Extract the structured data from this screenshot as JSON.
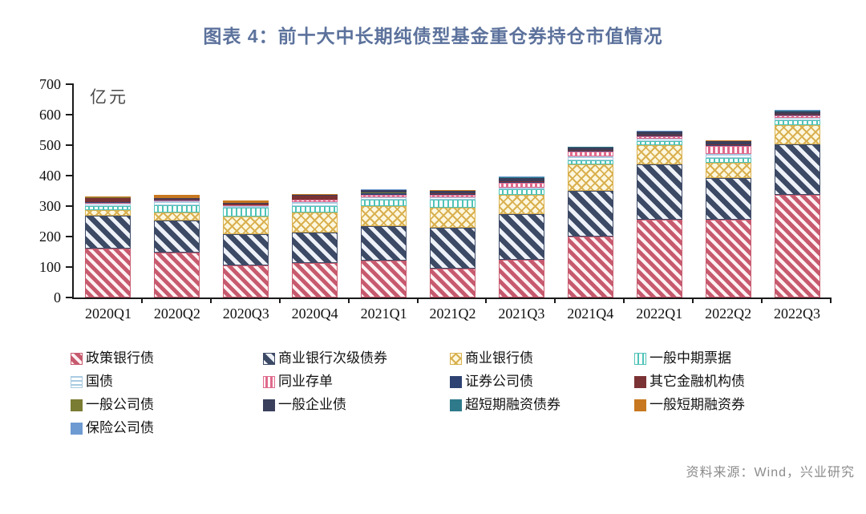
{
  "title": "图表 4：前十大中长期纯债型基金重仓券持仓市值情况",
  "source": "资料来源：Wind，兴业研究",
  "colors": {
    "title": "#5c729c",
    "source": "#8c8c8c",
    "axis": "#1a1a1a"
  },
  "chart_data": {
    "type": "bar",
    "stacked": true,
    "title": "图表 4：前十大中长期纯债型基金重仓券持仓市值情况",
    "xlabel": "",
    "ylabel": "亿元",
    "ylim": [
      0,
      700
    ],
    "yticks": [
      0,
      100,
      200,
      300,
      400,
      500,
      600,
      700
    ],
    "grid": false,
    "legend_position": "bottom",
    "categories": [
      "2020Q1",
      "2020Q2",
      "2020Q3",
      "2020Q4",
      "2021Q1",
      "2021Q2",
      "2021Q3",
      "2021Q4",
      "2022Q1",
      "2022Q2",
      "2022Q3"
    ],
    "series": [
      {
        "name": "政策银行债",
        "pattern": "diag-pink",
        "color": "#c75a6e",
        "values": [
          160,
          147,
          105,
          113,
          122,
          95,
          125,
          200,
          255,
          255,
          338
        ]
      },
      {
        "name": "商业银行次级债券",
        "pattern": "diag-navy",
        "color": "#3d4a66",
        "values": [
          108,
          106,
          104,
          100,
          113,
          135,
          150,
          149,
          182,
          136,
          165
        ]
      },
      {
        "name": "商业银行债",
        "pattern": "cross-yellow",
        "color": "#d9b04f",
        "values": [
          19,
          26,
          56,
          66,
          65,
          65,
          62,
          88,
          62,
          52,
          62
        ]
      },
      {
        "name": "一般中期票据",
        "pattern": "vlines-teal",
        "color": "#4fc3b8",
        "values": [
          13,
          25,
          30,
          20,
          22,
          25,
          18,
          13,
          15,
          15,
          18
        ]
      },
      {
        "name": "国债",
        "pattern": "hlines-lightblue",
        "color": "#a9cbe2",
        "values": [
          8,
          12,
          5,
          15,
          8,
          10,
          6,
          12,
          7,
          12,
          6
        ]
      },
      {
        "name": "同业存单",
        "pattern": "vlines-pink",
        "color": "#e06a8c",
        "values": [
          2,
          2,
          2,
          6,
          8,
          6,
          15,
          16,
          8,
          28,
          8
        ]
      },
      {
        "name": "证券公司债",
        "pattern": "solid",
        "color": "#2e4372",
        "values": [
          2,
          2,
          2,
          2,
          3,
          3,
          4,
          4,
          3,
          3,
          4
        ]
      },
      {
        "name": "其它金融机构债",
        "pattern": "solid",
        "color": "#7b3234",
        "values": [
          15,
          3,
          3,
          12,
          2,
          2,
          2,
          2,
          2,
          2,
          2
        ]
      },
      {
        "name": "一般公司债",
        "pattern": "solid",
        "color": "#7a7c33",
        "values": [
          1,
          1,
          1,
          1,
          1,
          1,
          1,
          1,
          1,
          1,
          1
        ]
      },
      {
        "name": "一般企业债",
        "pattern": "solid",
        "color": "#3a3f5c",
        "values": [
          1,
          2,
          2,
          2,
          8,
          8,
          10,
          8,
          9,
          9,
          8
        ]
      },
      {
        "name": "超短期融资债券",
        "pattern": "solid",
        "color": "#2e7a8a",
        "values": [
          1,
          1,
          1,
          1,
          1,
          1,
          2,
          1,
          1,
          1,
          1
        ]
      },
      {
        "name": "一般短期融资券",
        "pattern": "solid",
        "color": "#c87820",
        "values": [
          1,
          10,
          8,
          2,
          1,
          1,
          1,
          1,
          1,
          1,
          1
        ]
      },
      {
        "name": "保险公司债",
        "pattern": "solid",
        "color": "#6e9bd1",
        "values": [
          1,
          1,
          1,
          1,
          1,
          1,
          1,
          1,
          1,
          1,
          1
        ]
      }
    ]
  }
}
